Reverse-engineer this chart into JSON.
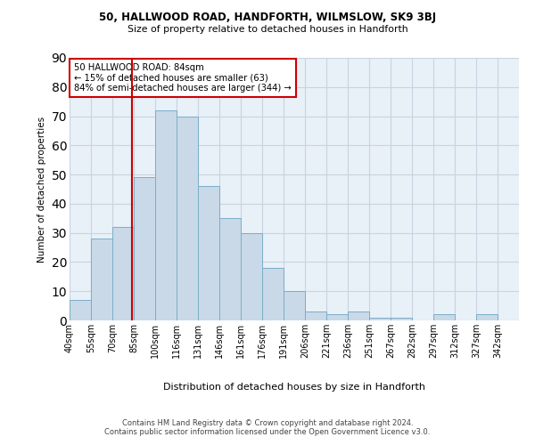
{
  "title": "50, HALLWOOD ROAD, HANDFORTH, WILMSLOW, SK9 3BJ",
  "subtitle": "Size of property relative to detached houses in Handforth",
  "xlabel": "Distribution of detached houses by size in Handforth",
  "ylabel": "Number of detached properties",
  "categories": [
    "40sqm",
    "55sqm",
    "70sqm",
    "85sqm",
    "100sqm",
    "116sqm",
    "131sqm",
    "146sqm",
    "161sqm",
    "176sqm",
    "191sqm",
    "206sqm",
    "221sqm",
    "236sqm",
    "251sqm",
    "267sqm",
    "282sqm",
    "297sqm",
    "312sqm",
    "327sqm",
    "342sqm"
  ],
  "bar_heights": [
    7,
    28,
    32,
    49,
    72,
    70,
    46,
    35,
    30,
    18,
    10,
    3,
    2,
    3,
    1,
    1,
    0,
    2,
    0,
    2
  ],
  "bar_color": "#c9d9e8",
  "bar_edge_color": "#7aaec8",
  "grid_color": "#c8d4e0",
  "bg_color": "#e8f0f8",
  "vline_color": "#cc0000",
  "annotation_text": "50 HALLWOOD ROAD: 84sqm\n← 15% of detached houses are smaller (63)\n84% of semi-detached houses are larger (344) →",
  "annotation_box_color": "#ffffff",
  "annotation_box_edge_color": "#cc0000",
  "footer_text": "Contains HM Land Registry data © Crown copyright and database right 2024.\nContains public sector information licensed under the Open Government Licence v3.0.",
  "ylim": [
    0,
    90
  ],
  "yticks": [
    0,
    10,
    20,
    30,
    40,
    50,
    60,
    70,
    80,
    90
  ],
  "property_sqm": 84,
  "bin_edges_sqm": [
    40,
    55,
    70,
    85,
    100,
    116,
    131,
    146,
    161,
    176,
    191,
    206,
    221,
    236,
    251,
    267,
    282,
    297,
    312,
    327,
    342
  ]
}
